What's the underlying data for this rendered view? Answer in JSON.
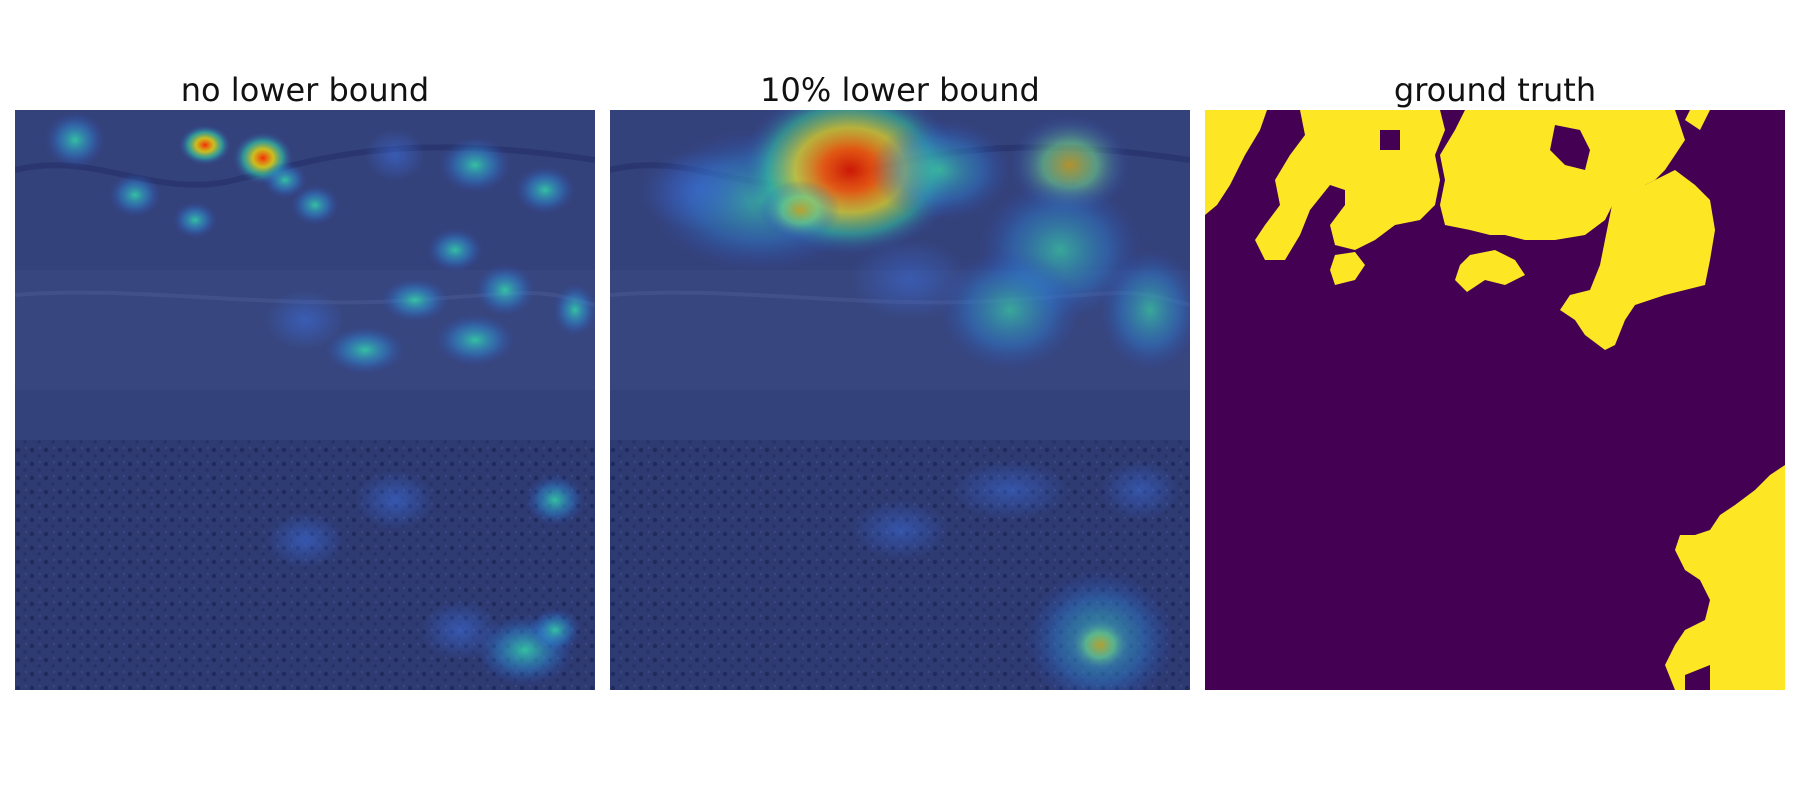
{
  "figure": {
    "panels": [
      {
        "title": "no lower bound"
      },
      {
        "title": "10% lower bound"
      },
      {
        "title": "ground truth"
      }
    ]
  },
  "colors": {
    "background": "#ffffff",
    "satellite_base": "#2f3b74",
    "satellite_dark": "#1b2758",
    "heat_low": "#2f4fbf",
    "heat_mid": "#34c3a0",
    "heat_high": "#ff2a00",
    "mask_background": "#440154",
    "mask_foreground": "#fde725"
  }
}
